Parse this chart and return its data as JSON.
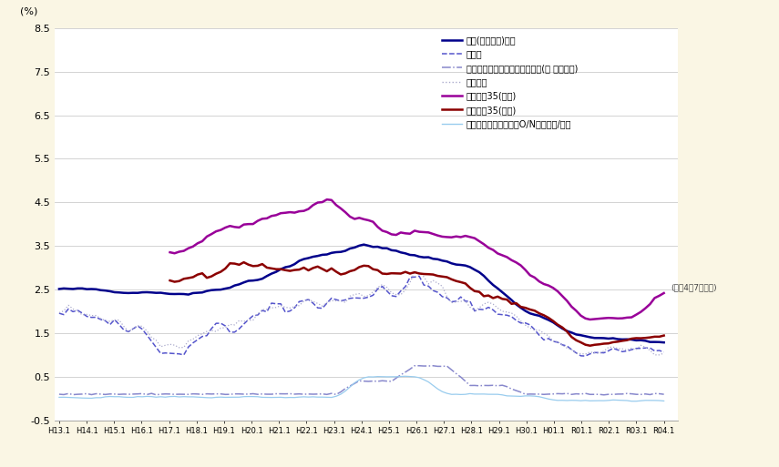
{
  "background_color": "#faf6e4",
  "plot_bg_color": "#ffffff",
  "ylabel": "(%)",
  "ylim": [
    -0.5,
    8.5
  ],
  "ytick_vals": [
    8.5,
    7.5,
    6.5,
    5.5,
    4.5,
    3.5,
    2.5,
    1.5,
    0.5,
    -0.5
  ],
  "ytick_labels": [
    "8.5",
    "7.5",
    "6.5",
    "5.5",
    "4.5",
    "3.5",
    "2.5",
    "1.5",
    "0.5",
    "-0.5"
  ],
  "xtick_labels": [
    "H13.1",
    "H14.1",
    "H15.1",
    "H16.1",
    "H17.1",
    "H18.1",
    "H19.1",
    "H20.1",
    "H21.1",
    "H22.1",
    "H23.1",
    "H24.1",
    "H25.1",
    "H26.1",
    "H27.1",
    "H28.1",
    "H29.1",
    "H30.1",
    "H01.1",
    "R01.1",
    "R02.1",
    "R03.1",
    "R04.1"
  ],
  "annotation": "(令和4年7月現在)",
  "legend_labels": [
    "機構(直接融賃)金利",
    "長プラ",
    "基準割引率および基準貸付利率(旧 公定歩合)",
    "財投金利",
    "フラット35(最高)",
    "フラット35(最低)",
    "無担保コールレート・O/N　月平均/金利"
  ],
  "line_colors": [
    "#00008B",
    "#5555cc",
    "#8888cc",
    "#aaaacc",
    "#990099",
    "#8B0000",
    "#99ccee"
  ],
  "line_styles": [
    "-",
    "--",
    "-.",
    ":",
    "-",
    "-",
    "-"
  ],
  "line_widths": [
    1.8,
    1.1,
    1.1,
    0.9,
    1.8,
    1.8,
    0.9
  ]
}
